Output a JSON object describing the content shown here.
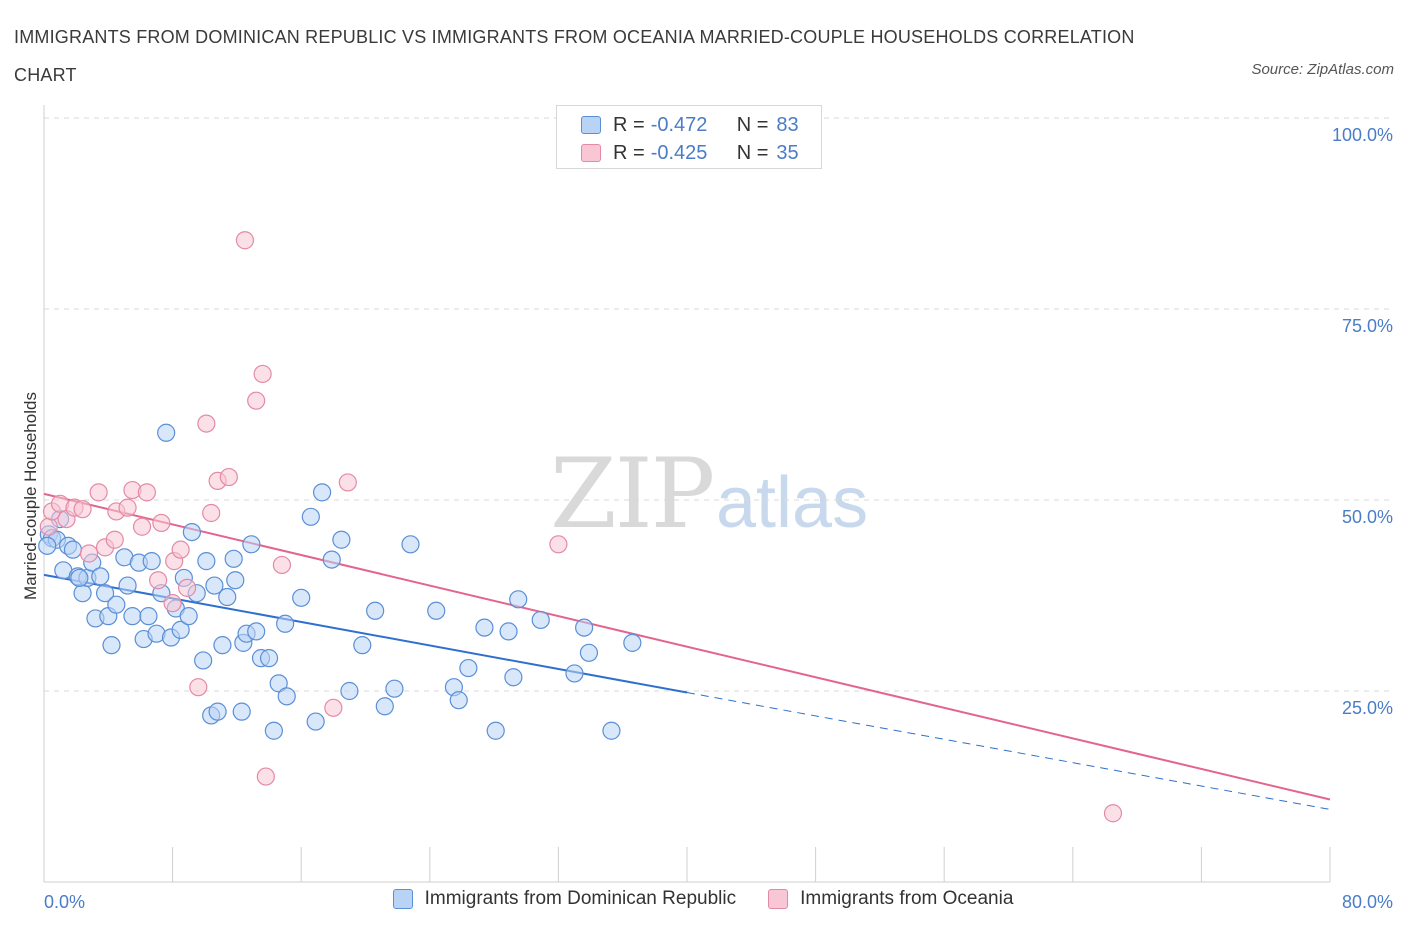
{
  "title": "IMMIGRANTS FROM DOMINICAN REPUBLIC VS IMMIGRANTS FROM OCEANIA MARRIED-COUPLE HOUSEHOLDS CORRELATION CHART",
  "source": "Source: ZipAtlas.com",
  "watermark": {
    "zip": "ZIP",
    "atlas": "atlas"
  },
  "colors": {
    "blue_fill": "#b9d3f5",
    "blue_stroke": "#5b8fd6",
    "blue_line": "#2f6fcf",
    "pink_fill": "#f8c6d4",
    "pink_stroke": "#e48aa7",
    "pink_line": "#e3648e",
    "tick_text": "#4a7cc7",
    "grid": "#d9d9d9"
  },
  "legend_top": [
    {
      "r_label": "R =",
      "r_value": "-0.472",
      "n_label": "N =",
      "n_value": "83",
      "series": "blue"
    },
    {
      "r_label": "R =",
      "r_value": "-0.425",
      "n_label": "N =",
      "n_value": "35",
      "series": "pink"
    }
  ],
  "chart_data": {
    "type": "scatter",
    "title": "IMMIGRANTS FROM DOMINICAN REPUBLIC VS IMMIGRANTS FROM OCEANIA MARRIED-COUPLE HOUSEHOLDS CORRELATION CHART",
    "xlabel": "",
    "ylabel": "Married-couple Households",
    "xlim": [
      0,
      80
    ],
    "ylim": [
      0,
      100
    ],
    "x_tick_labels": [
      "0.0%",
      "80.0%"
    ],
    "y_tick_labels": [
      "25.0%",
      "50.0%",
      "75.0%",
      "100.0%"
    ],
    "y_ticks": [
      25,
      50,
      75,
      100
    ],
    "grid": true,
    "legend_position": "bottom",
    "series": [
      {
        "name": "Immigrants from Dominican Republic",
        "color": "blue",
        "r": -0.472,
        "n": 83,
        "trend": {
          "x0": 0,
          "y0": 40.2,
          "x1": 40,
          "y1": 24.8,
          "dash_to_x": 80,
          "dash_to_y": 9.5
        },
        "points": [
          [
            0.3,
            45.5
          ],
          [
            0.5,
            45.0
          ],
          [
            0.8,
            44.8
          ],
          [
            1.0,
            47.5
          ],
          [
            1.2,
            40.8
          ],
          [
            1.5,
            44.0
          ],
          [
            1.8,
            43.5
          ],
          [
            2.1,
            40.0
          ],
          [
            2.4,
            37.8
          ],
          [
            2.7,
            39.8
          ],
          [
            3.0,
            41.8
          ],
          [
            3.2,
            34.5
          ],
          [
            3.5,
            40.0
          ],
          [
            3.8,
            37.8
          ],
          [
            4.0,
            34.8
          ],
          [
            4.2,
            31.0
          ],
          [
            4.5,
            36.3
          ],
          [
            5.0,
            42.5
          ],
          [
            5.2,
            38.8
          ],
          [
            5.5,
            34.8
          ],
          [
            5.9,
            41.8
          ],
          [
            6.2,
            31.8
          ],
          [
            6.5,
            34.8
          ],
          [
            6.7,
            42.0
          ],
          [
            7.0,
            32.5
          ],
          [
            7.3,
            37.8
          ],
          [
            7.6,
            58.8
          ],
          [
            7.9,
            32.0
          ],
          [
            8.2,
            35.8
          ],
          [
            8.5,
            33.0
          ],
          [
            8.7,
            39.8
          ],
          [
            9.0,
            34.8
          ],
          [
            9.2,
            45.8
          ],
          [
            9.5,
            37.8
          ],
          [
            9.9,
            29.0
          ],
          [
            10.1,
            42.0
          ],
          [
            10.4,
            21.8
          ],
          [
            10.6,
            38.8
          ],
          [
            10.8,
            22.3
          ],
          [
            11.1,
            31.0
          ],
          [
            11.4,
            37.3
          ],
          [
            11.8,
            42.3
          ],
          [
            11.9,
            39.5
          ],
          [
            12.3,
            22.3
          ],
          [
            12.4,
            31.3
          ],
          [
            12.6,
            32.5
          ],
          [
            12.9,
            44.2
          ],
          [
            13.2,
            32.8
          ],
          [
            13.5,
            29.3
          ],
          [
            14.0,
            29.3
          ],
          [
            14.3,
            19.8
          ],
          [
            14.6,
            26.0
          ],
          [
            15.0,
            33.8
          ],
          [
            15.1,
            24.3
          ],
          [
            16.0,
            37.2
          ],
          [
            16.6,
            47.8
          ],
          [
            16.9,
            21.0
          ],
          [
            17.3,
            51.0
          ],
          [
            17.9,
            42.2
          ],
          [
            18.5,
            44.8
          ],
          [
            19.0,
            25.0
          ],
          [
            19.8,
            31.0
          ],
          [
            20.6,
            35.5
          ],
          [
            21.2,
            23.0
          ],
          [
            21.8,
            25.3
          ],
          [
            22.8,
            44.2
          ],
          [
            24.4,
            35.5
          ],
          [
            25.5,
            25.5
          ],
          [
            25.8,
            23.8
          ],
          [
            26.4,
            28.0
          ],
          [
            27.4,
            33.3
          ],
          [
            28.1,
            19.8
          ],
          [
            28.9,
            32.8
          ],
          [
            29.2,
            26.8
          ],
          [
            29.5,
            37.0
          ],
          [
            30.9,
            34.3
          ],
          [
            33.0,
            27.3
          ],
          [
            33.6,
            33.3
          ],
          [
            33.9,
            30.0
          ],
          [
            35.3,
            19.8
          ],
          [
            36.6,
            31.3
          ],
          [
            0.2,
            44.0
          ],
          [
            2.2,
            39.8
          ]
        ]
      },
      {
        "name": "Immigrants from Oceania",
        "color": "pink",
        "r": -0.425,
        "n": 35,
        "trend": {
          "x0": 0,
          "y0": 50.8,
          "x1": 80,
          "y1": 10.8
        },
        "points": [
          [
            0.3,
            46.5
          ],
          [
            0.5,
            48.5
          ],
          [
            1.0,
            49.5
          ],
          [
            1.4,
            47.5
          ],
          [
            1.9,
            49.0
          ],
          [
            2.4,
            48.8
          ],
          [
            2.8,
            43.0
          ],
          [
            3.4,
            51.0
          ],
          [
            3.8,
            43.8
          ],
          [
            4.4,
            44.8
          ],
          [
            4.5,
            48.5
          ],
          [
            5.2,
            49.0
          ],
          [
            5.5,
            51.3
          ],
          [
            6.1,
            46.5
          ],
          [
            6.4,
            51.0
          ],
          [
            7.1,
            39.5
          ],
          [
            7.3,
            47.0
          ],
          [
            8.1,
            42.0
          ],
          [
            8.5,
            43.5
          ],
          [
            8.9,
            38.5
          ],
          [
            9.6,
            25.5
          ],
          [
            10.1,
            60.0
          ],
          [
            10.4,
            48.3
          ],
          [
            10.8,
            52.5
          ],
          [
            11.5,
            53.0
          ],
          [
            12.5,
            84.0
          ],
          [
            13.2,
            63.0
          ],
          [
            13.6,
            66.5
          ],
          [
            13.8,
            13.8
          ],
          [
            14.8,
            41.5
          ],
          [
            18.0,
            22.8
          ],
          [
            18.9,
            52.3
          ],
          [
            32.0,
            44.2
          ],
          [
            66.5,
            9.0
          ],
          [
            8.0,
            36.5
          ]
        ]
      }
    ]
  },
  "legend_bottom": [
    {
      "label": "Immigrants from Dominican Republic",
      "series": "blue"
    },
    {
      "label": "Immigrants from Oceania",
      "series": "pink"
    }
  ]
}
